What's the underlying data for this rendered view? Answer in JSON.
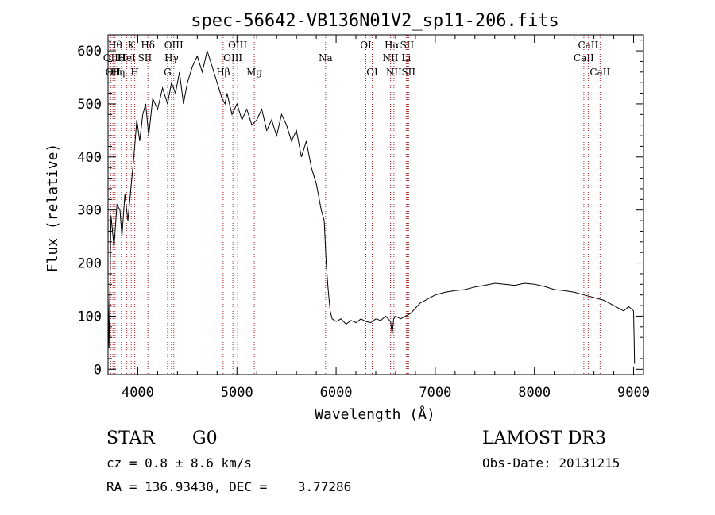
{
  "chart_data": {
    "type": "line",
    "title": "spec-56642-VB136N01V2_sp11-206.fits",
    "xlabel": "Wavelength (Å)",
    "ylabel": "Flux (relative)",
    "xlim": [
      3700,
      9100
    ],
    "ylim": [
      -10,
      630
    ],
    "xticks": [
      4000,
      5000,
      6000,
      7000,
      8000,
      9000
    ],
    "yticks": [
      0,
      100,
      200,
      300,
      400,
      500,
      600
    ],
    "grid": false,
    "series": [
      {
        "x": [
          3700,
          3710,
          3730,
          3760,
          3790,
          3820,
          3840,
          3870,
          3900,
          3930,
          3960,
          3990,
          4020,
          4050,
          4080,
          4110,
          4150,
          4200,
          4250,
          4300,
          4340,
          4380,
          4420,
          4460,
          4500,
          4550,
          4600,
          4650,
          4700,
          4750,
          4800,
          4850,
          4880,
          4900,
          4950,
          5000,
          5050,
          5100,
          5150,
          5200,
          5250,
          5300,
          5350,
          5400,
          5450,
          5500,
          5550,
          5600,
          5650,
          5700,
          5750,
          5800,
          5850,
          5880,
          5900,
          5920,
          5940,
          5960,
          6000,
          6050,
          6100,
          6150,
          6200,
          6250,
          6300,
          6350,
          6400,
          6450,
          6500,
          6550,
          6565,
          6580,
          6600,
          6650,
          6700,
          6750,
          6800,
          6850,
          6900,
          6950,
          7000,
          7100,
          7200,
          7300,
          7400,
          7500,
          7600,
          7700,
          7800,
          7900,
          8000,
          8100,
          8200,
          8300,
          8400,
          8500,
          8600,
          8700,
          8800,
          8850,
          8900,
          8950,
          9000,
          9010
        ],
        "y": [
          140,
          40,
          290,
          230,
          310,
          300,
          250,
          330,
          280,
          340,
          400,
          470,
          430,
          480,
          500,
          440,
          510,
          490,
          530,
          500,
          540,
          520,
          560,
          500,
          540,
          570,
          590,
          560,
          600,
          570,
          540,
          510,
          500,
          520,
          480,
          500,
          470,
          490,
          460,
          470,
          490,
          450,
          470,
          440,
          480,
          460,
          430,
          450,
          400,
          430,
          380,
          350,
          300,
          280,
          200,
          150,
          110,
          95,
          90,
          95,
          85,
          92,
          88,
          95,
          90,
          88,
          95,
          92,
          100,
          90,
          65,
          95,
          100,
          95,
          100,
          105,
          115,
          125,
          130,
          135,
          140,
          145,
          148,
          150,
          155,
          158,
          162,
          160,
          158,
          162,
          160,
          156,
          150,
          148,
          145,
          140,
          135,
          130,
          120,
          115,
          110,
          118,
          110,
          10
        ]
      }
    ],
    "line_markers": [
      {
        "wavelength": 3727,
        "label": "OII",
        "row": 2
      },
      {
        "wavelength": 3750,
        "label": "OII",
        "row": 3
      },
      {
        "wavelength": 3771,
        "label": "Hθ",
        "row": 1
      },
      {
        "wavelength": 3799,
        "label": "Hη",
        "row": 3
      },
      {
        "wavelength": 3835,
        "label": "H",
        "row": 2
      },
      {
        "wavelength": 3889,
        "label": "HeI",
        "row": 2
      },
      {
        "wavelength": 3934,
        "label": "K",
        "row": 1
      },
      {
        "wavelength": 3969,
        "label": "H",
        "row": 3
      },
      {
        "wavelength": 4072,
        "label": "SII",
        "row": 2
      },
      {
        "wavelength": 4102,
        "label": "Hδ",
        "row": 1
      },
      {
        "wavelength": 4300,
        "label": "G",
        "row": 3
      },
      {
        "wavelength": 4340,
        "label": "Hγ",
        "row": 2
      },
      {
        "wavelength": 4363,
        "label": "OIII",
        "row": 1
      },
      {
        "wavelength": 4861,
        "label": "Hβ",
        "row": 3
      },
      {
        "wavelength": 4959,
        "label": "OIII",
        "row": 2
      },
      {
        "wavelength": 5007,
        "label": "OIII",
        "row": 1
      },
      {
        "wavelength": 5175,
        "label": "Mg",
        "row": 3
      },
      {
        "wavelength": 5894,
        "label": "Na",
        "row": 2
      },
      {
        "wavelength": 6300,
        "label": "OI",
        "row": 1
      },
      {
        "wavelength": 6364,
        "label": "OI",
        "row": 3
      },
      {
        "wavelength": 6548,
        "label": "NII",
        "row": 2
      },
      {
        "wavelength": 6563,
        "label": "Hα",
        "row": 1
      },
      {
        "wavelength": 6583,
        "label": "NII",
        "row": 3
      },
      {
        "wavelength": 6707,
        "label": "Li",
        "row": 2
      },
      {
        "wavelength": 6716,
        "label": "SII",
        "row": 1
      },
      {
        "wavelength": 6731,
        "label": "SII",
        "row": 3
      },
      {
        "wavelength": 8498,
        "label": "CaII",
        "row": 2
      },
      {
        "wavelength": 8542,
        "label": "CaII",
        "row": 1
      },
      {
        "wavelength": 8662,
        "label": "CaII",
        "row": 3
      }
    ]
  },
  "info": {
    "class": "STAR",
    "subclass": "G0",
    "survey": "LAMOST DR3",
    "cz": "cz = 0.8 ± 8.6 km/s",
    "obs_date": "Obs-Date: 20131215",
    "coords": "RA = 136.93430, DEC =    3.77286"
  },
  "colors": {
    "axes": "#000000",
    "spectrum": "#000000",
    "line_markers": "#b22222"
  }
}
